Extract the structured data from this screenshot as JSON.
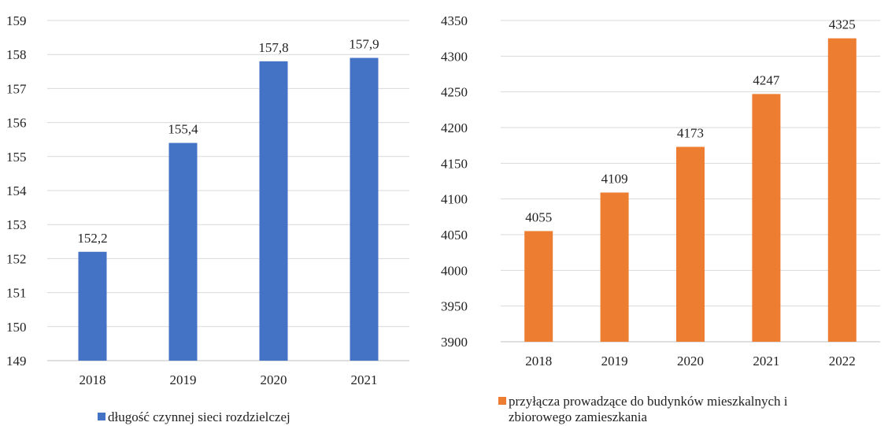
{
  "chart_data": [
    {
      "type": "bar",
      "categories": [
        "2018",
        "2019",
        "2020",
        "2021"
      ],
      "values": [
        152.2,
        155.4,
        157.8,
        157.9
      ],
      "value_labels": [
        "152,2",
        "155,4",
        "157,8",
        "157,9"
      ],
      "y_ticks": [
        "149",
        "150",
        "151",
        "152",
        "153",
        "154",
        "155",
        "156",
        "157",
        "158",
        "159"
      ],
      "ylim": [
        149,
        159
      ],
      "grid": true,
      "legend_position": "bottom",
      "series_name": "długość czynnej sieci rozdzielczej",
      "color": "#4472C4"
    },
    {
      "type": "bar",
      "categories": [
        "2018",
        "2019",
        "2020",
        "2021",
        "2022"
      ],
      "values": [
        4055,
        4109,
        4173,
        4247,
        4325
      ],
      "value_labels": [
        "4055",
        "4109",
        "4173",
        "4247",
        "4325"
      ],
      "y_ticks": [
        "3900",
        "3950",
        "4000",
        "4050",
        "4100",
        "4150",
        "4200",
        "4250",
        "4300",
        "4350"
      ],
      "ylim": [
        3900,
        4350
      ],
      "grid": true,
      "legend_position": "bottom",
      "series_name_lines": [
        "przyłącza prowadzące do budynków mieszkalnych i",
        "zbiorowego zamieszkania"
      ],
      "color": "#ED7D31"
    }
  ]
}
